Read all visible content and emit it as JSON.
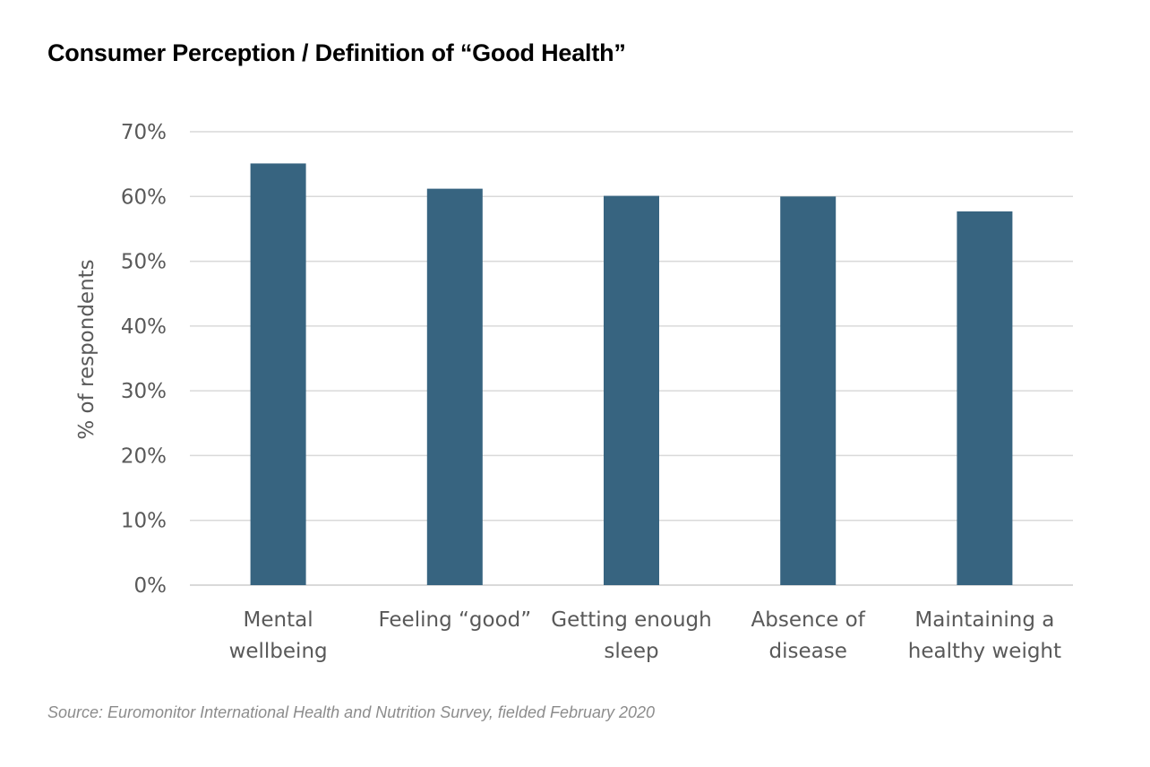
{
  "chart_data": {
    "type": "bar",
    "title": "Consumer Perception / Definition of “Good Health”",
    "ylabel": "% of respondents",
    "xlabel": "",
    "categories": [
      [
        "Mental",
        "wellbeing"
      ],
      [
        "Feeling “good”"
      ],
      [
        "Getting enough",
        "sleep"
      ],
      [
        "Absence of",
        "disease"
      ],
      [
        "Maintaining a",
        "healthy weight"
      ]
    ],
    "values": [
      65.1,
      61.2,
      60.1,
      60.0,
      57.7
    ],
    "ylim": [
      0,
      70
    ],
    "yticks": [
      "0%",
      "10%",
      "20%",
      "30%",
      "40%",
      "50%",
      "60%",
      "70%"
    ],
    "grid": true,
    "bar_color": "#376480",
    "grid_color": "#d9d9d9"
  },
  "source": "Source: Euromonitor International Health and Nutrition Survey, fielded February 2020"
}
